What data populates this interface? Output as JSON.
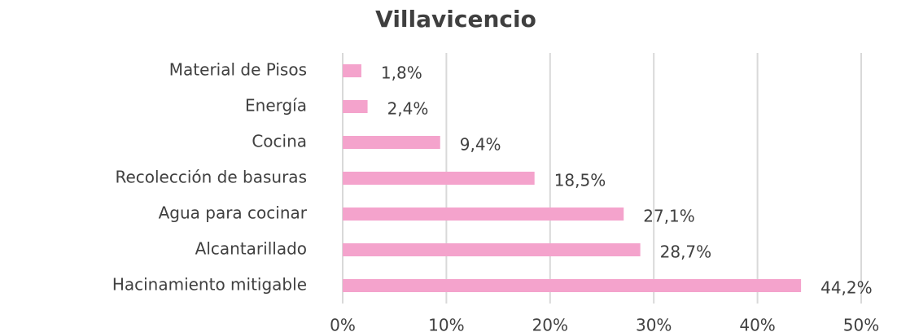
{
  "chart_data": {
    "type": "bar",
    "orientation": "horizontal",
    "title": "Villavicencio",
    "categories": [
      "Material de Pisos",
      "Energía",
      "Cocina",
      "Recolección de basuras",
      "Agua para cocinar",
      "Alcantarillado",
      "Hacinamiento mitigable"
    ],
    "values": [
      1.8,
      2.4,
      9.4,
      18.5,
      27.1,
      28.7,
      44.2
    ],
    "value_labels": [
      "1,8%",
      "2,4%",
      "9,4%",
      "18,5%",
      "27,1%",
      "28,7%",
      "44,2%"
    ],
    "color": "#f4a3cc",
    "xlim": [
      0,
      50
    ],
    "xticks": [
      {
        "value": 0,
        "label": "0%"
      },
      {
        "value": 10,
        "label": "10%"
      },
      {
        "value": 20,
        "label": "20%"
      },
      {
        "value": 30,
        "label": "30%"
      },
      {
        "value": 40,
        "label": "40%"
      },
      {
        "value": 50,
        "label": "50%"
      }
    ],
    "grid": true
  }
}
